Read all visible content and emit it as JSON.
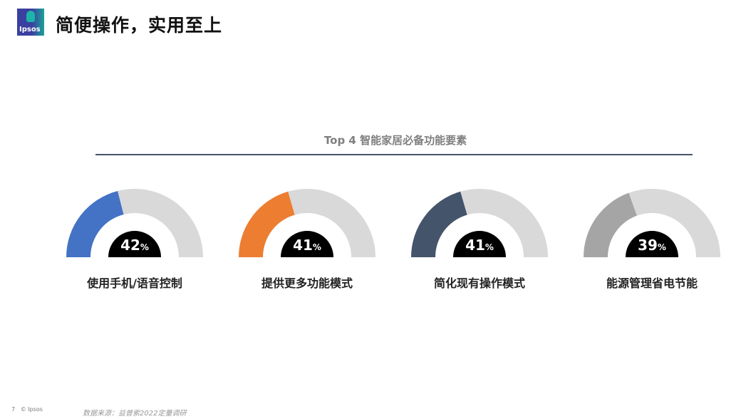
{
  "header": {
    "title": "简便操作，实用至上",
    "logo_text": "Ipsos"
  },
  "chart_data": {
    "type": "gauge",
    "title": "Top 4 智能家居必备功能要素",
    "categories": [
      "使用手机/语音控制",
      "提供更多功能模式",
      "简化现有操作模式",
      "能源管理省电节能"
    ],
    "values": [
      42,
      41,
      41,
      39
    ],
    "value_labels": [
      "42",
      "41",
      "41",
      "39"
    ],
    "unit": "%",
    "colors": [
      "#4472c4",
      "#ed7d31",
      "#44546a",
      "#a5a5a5"
    ],
    "track_color": "#d9d9d9",
    "range": [
      0,
      100
    ]
  },
  "footer": {
    "page": "7",
    "copyright": "© Ipsos",
    "source": "数据来源：益普索2022定量调研"
  }
}
